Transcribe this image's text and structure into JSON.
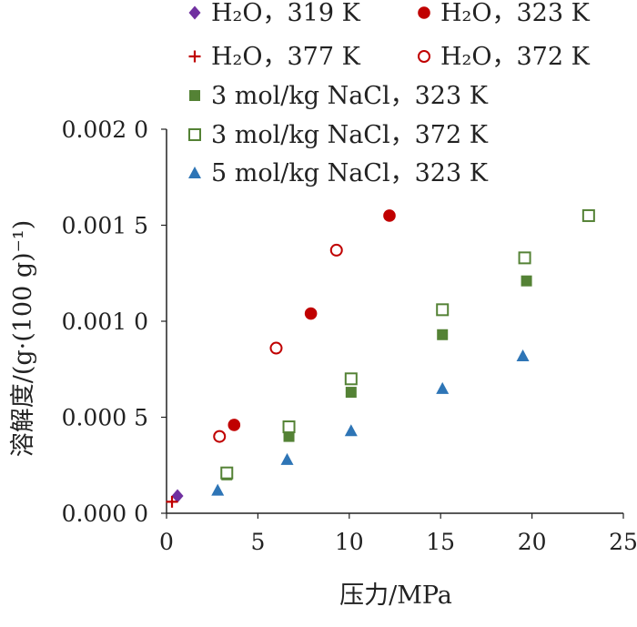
{
  "chart_data": {
    "type": "scatter",
    "xlabel": "压力/MPa",
    "ylabel": "溶解度/(g·(100 g)⁻¹)",
    "xlim": [
      0,
      25
    ],
    "ylim": [
      0,
      0.002
    ],
    "x_ticks": [
      "0",
      "5",
      "10",
      "15",
      "20",
      "25"
    ],
    "y_ticks": [
      "0.000 0",
      "0.000 5",
      "0.001 0",
      "0.001 5",
      "0.002 0"
    ],
    "grid": false,
    "legend_position": "top-right",
    "series": [
      {
        "name": "H₂O，319 K",
        "marker": "diamond-filled",
        "color": "#7030a0",
        "points": [
          [
            0.6,
            9e-05
          ]
        ]
      },
      {
        "name": "H₂O，323 K",
        "marker": "circle-filled",
        "color": "#c00000",
        "points": [
          [
            3.7,
            0.00046
          ],
          [
            7.9,
            0.00104
          ],
          [
            12.2,
            0.00155
          ]
        ]
      },
      {
        "name": "H₂O，377 K",
        "marker": "plus",
        "color": "#c00000",
        "points": [
          [
            0.3,
            6e-05
          ]
        ]
      },
      {
        "name": "H₂O，372 K",
        "marker": "circle-open",
        "color": "#c00000",
        "points": [
          [
            2.9,
            0.0004
          ],
          [
            6.0,
            0.00086
          ],
          [
            9.3,
            0.00137
          ]
        ]
      },
      {
        "name": "3 mol/kg NaCl，323 K",
        "marker": "square-filled",
        "color": "#548235",
        "points": [
          [
            3.3,
            0.0002
          ],
          [
            6.7,
            0.0004
          ],
          [
            10.1,
            0.00063
          ],
          [
            15.1,
            0.00093
          ],
          [
            19.7,
            0.00121
          ]
        ]
      },
      {
        "name": "3 mol/kg NaCl，372 K",
        "marker": "square-open",
        "color": "#548235",
        "points": [
          [
            3.3,
            0.00021
          ],
          [
            6.7,
            0.00045
          ],
          [
            10.1,
            0.0007
          ],
          [
            15.1,
            0.00106
          ],
          [
            19.6,
            0.00133
          ],
          [
            23.1,
            0.00155
          ]
        ]
      },
      {
        "name": "5 mol/kg NaCl，323 K",
        "marker": "triangle-filled",
        "color": "#2e75b6",
        "points": [
          [
            2.8,
            0.00012
          ],
          [
            6.6,
            0.00028
          ],
          [
            10.1,
            0.00043
          ],
          [
            15.1,
            0.00065
          ],
          [
            19.5,
            0.00082
          ]
        ]
      }
    ]
  }
}
